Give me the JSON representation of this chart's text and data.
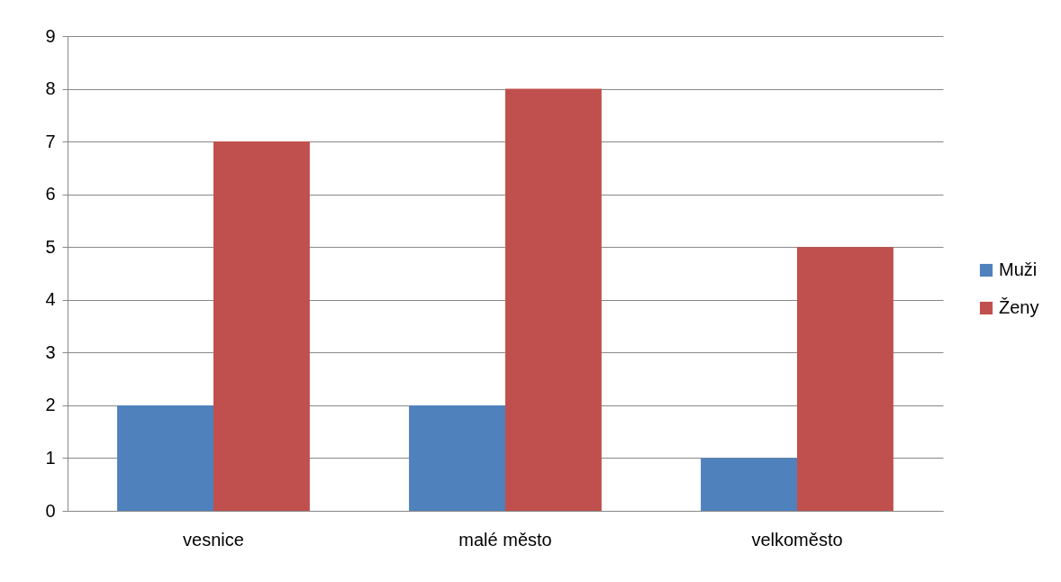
{
  "chart_data": {
    "type": "bar",
    "categories": [
      "vesnice",
      "malé město",
      "velkoměsto"
    ],
    "series": [
      {
        "name": "Muži",
        "color": "#4f81bd",
        "values": [
          2,
          2,
          1
        ]
      },
      {
        "name": "Ženy",
        "color": "#c0504d",
        "values": [
          7,
          8,
          5
        ]
      }
    ],
    "ylim": [
      0,
      9
    ],
    "yticks": [
      0,
      1,
      2,
      3,
      4,
      5,
      6,
      7,
      8,
      9
    ],
    "grid": "y",
    "legend": "right"
  }
}
